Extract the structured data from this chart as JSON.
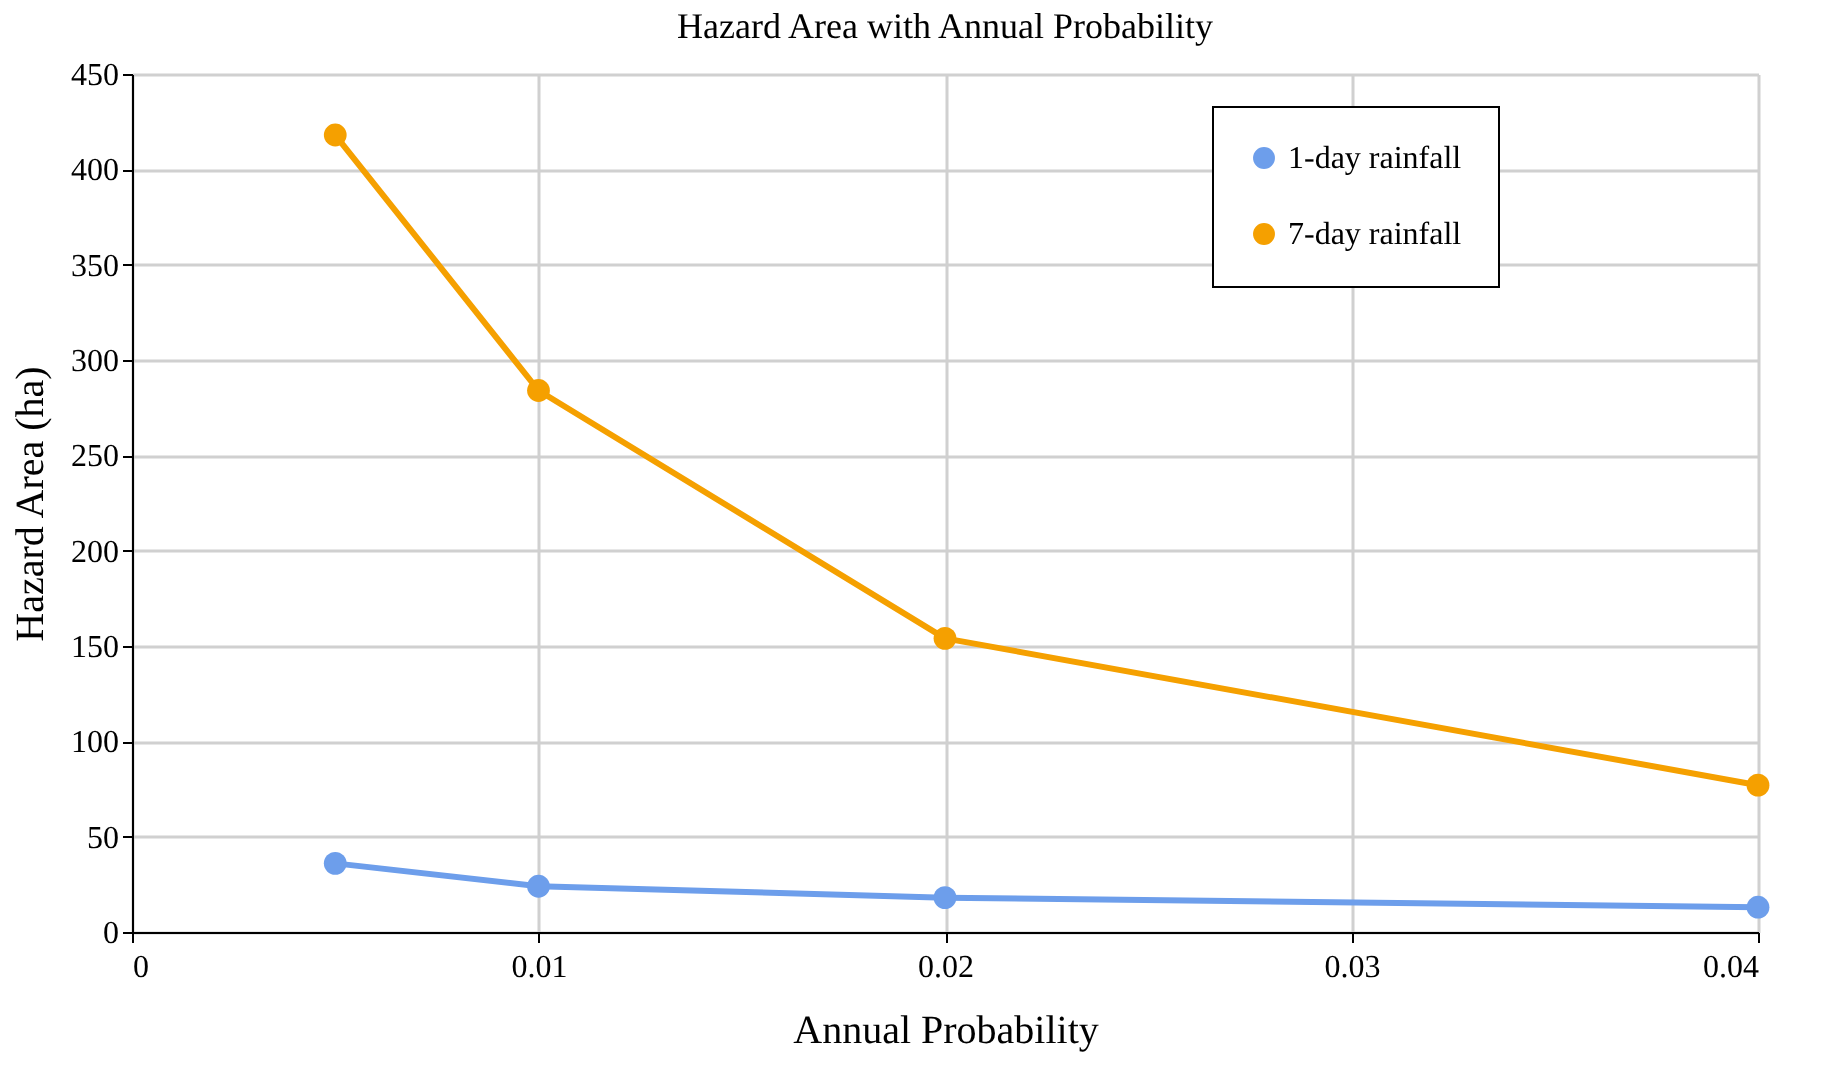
{
  "chart_data": {
    "type": "line",
    "title": "Hazard Area with Annual Probability",
    "xlabel": "Annual Probability",
    "ylabel": "Hazard Area (ha)",
    "x": [
      0.005,
      0.01,
      0.02,
      0.04
    ],
    "series": [
      {
        "name": "1-day rainfall",
        "color": "#6d9eeb",
        "values": [
          36,
          24,
          18,
          13
        ]
      },
      {
        "name": "7-day rainfall",
        "color": "#f5a000",
        "values": [
          418,
          284,
          154,
          77
        ]
      }
    ],
    "xlim": [
      0,
      0.04
    ],
    "xticks": [
      0,
      0.01,
      0.02,
      0.03,
      0.04
    ],
    "ylim": [
      0,
      450
    ],
    "yticks": [
      0,
      50,
      100,
      150,
      200,
      250,
      300,
      350,
      400,
      450
    ],
    "grid": true,
    "legend": "top right",
    "marker": "circle",
    "line_style": "solid"
  }
}
